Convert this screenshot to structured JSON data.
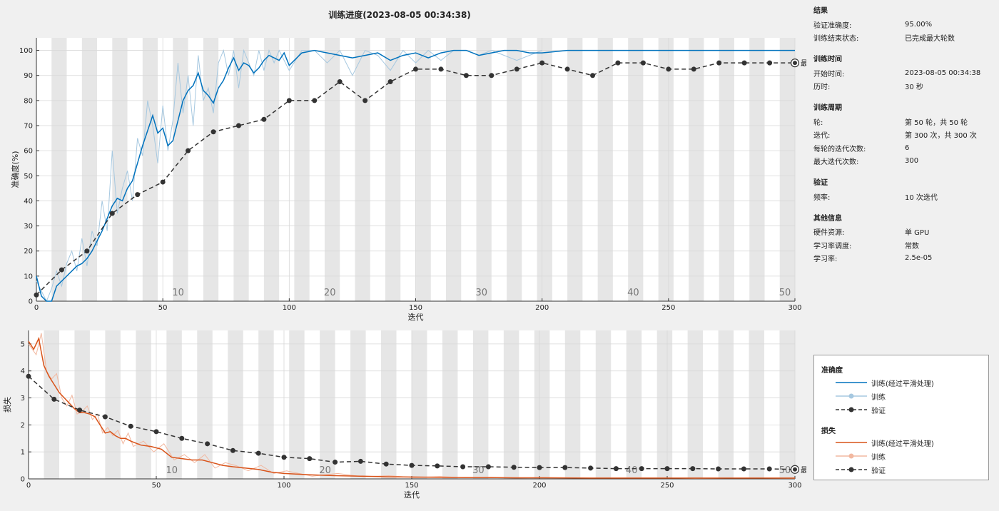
{
  "window": {
    "title": "训练进度(2023-08-05 00:34:38)"
  },
  "colors": {
    "accuracy_smoothed": "#0072bd",
    "accuracy_raw": "#a6c8e0",
    "loss_smoothed": "#d95319",
    "loss_raw": "#f2b8a0",
    "validation": "#333333",
    "epoch_band": "#e6e6e6"
  },
  "icons": {
    "edit": "pen-icon",
    "final_marker": "circled-dot-icon"
  },
  "info": {
    "sections": [
      {
        "title": "结果",
        "rows": [
          {
            "k": "验证准确度:",
            "v": "95.00%"
          },
          {
            "k": "训练结束状态:",
            "v": "已完成最大轮数"
          }
        ]
      },
      {
        "title": "训练时间",
        "rows": [
          {
            "k": "开始时间:",
            "v": "2023-08-05 00:34:38"
          },
          {
            "k": "历时:",
            "v": "30 秒"
          }
        ]
      },
      {
        "title": "训练周期",
        "rows": [
          {
            "k": "轮:",
            "v": "第 50 轮，共 50 轮"
          },
          {
            "k": "迭代:",
            "v": "第 300 次，共 300 次"
          },
          {
            "k": "每轮的迭代次数:",
            "v": "6"
          },
          {
            "k": "最大迭代次数:",
            "v": "300"
          }
        ]
      },
      {
        "title": "验证",
        "rows": [
          {
            "k": "频率:",
            "v": "10 次迭代"
          }
        ]
      },
      {
        "title": "其他信息",
        "rows": [
          {
            "k": "硬件资源:",
            "v": "单 GPU"
          },
          {
            "k": "学习率调度:",
            "v": "常数"
          },
          {
            "k": "学习率:",
            "v": "2.5e-05"
          }
        ]
      }
    ]
  },
  "legend": {
    "accuracy_title": "准确度",
    "accuracy_items": [
      "训练(经过平滑处理)",
      "训练",
      "验证"
    ],
    "loss_title": "损失",
    "loss_items": [
      "训练(经过平滑处理)",
      "训练",
      "验证"
    ]
  },
  "chart_data": [
    {
      "type": "line",
      "title": "",
      "xlabel": "迭代",
      "ylabel": "准确度(%)",
      "xlim": [
        0,
        300
      ],
      "ylim": [
        0,
        105
      ],
      "x_ticks": [
        0,
        50,
        100,
        150,
        200,
        250,
        300
      ],
      "y_ticks": [
        0,
        10,
        20,
        30,
        40,
        50,
        60,
        70,
        80,
        90,
        100
      ],
      "epoch_labels": [
        10,
        20,
        30,
        40,
        50
      ],
      "iterations_per_epoch": 6,
      "final_label": "最终",
      "grid": true,
      "series": [
        {
          "name": "训练(经过平滑处理)",
          "x": [
            0,
            2,
            4,
            6,
            8,
            10,
            12,
            14,
            16,
            18,
            20,
            22,
            24,
            26,
            28,
            30,
            32,
            34,
            36,
            38,
            40,
            42,
            44,
            46,
            48,
            50,
            52,
            54,
            56,
            58,
            60,
            62,
            64,
            66,
            68,
            70,
            72,
            74,
            76,
            78,
            80,
            82,
            84,
            86,
            88,
            90,
            92,
            94,
            96,
            98,
            100,
            105,
            110,
            115,
            120,
            125,
            130,
            135,
            140,
            145,
            150,
            155,
            160,
            165,
            170,
            175,
            180,
            185,
            190,
            195,
            200,
            210,
            220,
            230,
            240,
            250,
            260,
            270,
            280,
            290,
            300
          ],
          "values": [
            10,
            2,
            0,
            0,
            6,
            8,
            10,
            12,
            14,
            15,
            17,
            20,
            24,
            28,
            33,
            38,
            41,
            40,
            45,
            48,
            55,
            62,
            68,
            74,
            67,
            69,
            62,
            64,
            72,
            80,
            84,
            86,
            91,
            84,
            82,
            79,
            85,
            88,
            93,
            97,
            92,
            95,
            94,
            91,
            93,
            96,
            98,
            97,
            96,
            99,
            94,
            99,
            100,
            99,
            98,
            97,
            98,
            99,
            96,
            98,
            99,
            97,
            99,
            100,
            100,
            98,
            99,
            100,
            100,
            99,
            99,
            100,
            100,
            100,
            100,
            100,
            100,
            100,
            100,
            100,
            100
          ]
        },
        {
          "name": "训练",
          "x": [
            0,
            2,
            4,
            6,
            8,
            10,
            12,
            14,
            16,
            18,
            20,
            22,
            24,
            26,
            28,
            30,
            32,
            34,
            36,
            38,
            40,
            42,
            44,
            46,
            48,
            50,
            52,
            54,
            56,
            58,
            60,
            62,
            64,
            66,
            68,
            70,
            72,
            74,
            76,
            78,
            80,
            82,
            84,
            86,
            88,
            90,
            92,
            94,
            96,
            98,
            100,
            105,
            110,
            115,
            120,
            125,
            130,
            135,
            140,
            145,
            150,
            155,
            160,
            165,
            170,
            175,
            180,
            190,
            200
          ],
          "values": [
            8,
            4,
            0,
            5,
            12,
            6,
            15,
            20,
            12,
            25,
            14,
            28,
            22,
            40,
            28,
            60,
            35,
            45,
            52,
            40,
            65,
            58,
            80,
            70,
            55,
            78,
            60,
            72,
            95,
            75,
            90,
            70,
            98,
            80,
            85,
            75,
            95,
            100,
            90,
            100,
            85,
            100,
            95,
            90,
            100,
            92,
            100,
            95,
            100,
            96,
            92,
            100,
            100,
            95,
            100,
            90,
            100,
            98,
            92,
            100,
            95,
            100,
            96,
            100,
            100,
            98,
            100,
            96,
            100
          ]
        },
        {
          "name": "验证",
          "x": [
            0,
            10,
            20,
            30,
            40,
            50,
            60,
            70,
            80,
            90,
            100,
            110,
            120,
            130,
            140,
            150,
            160,
            170,
            180,
            190,
            200,
            210,
            220,
            230,
            240,
            250,
            260,
            270,
            280,
            290,
            300
          ],
          "values": [
            2.5,
            12.5,
            20,
            35,
            42.5,
            47.5,
            60,
            67.5,
            70,
            72.5,
            80,
            80,
            87.5,
            80,
            87.5,
            92.5,
            92.5,
            90,
            90,
            92.5,
            95,
            92.5,
            90,
            95,
            95,
            92.5,
            92.5,
            95,
            95,
            95,
            95
          ]
        }
      ]
    },
    {
      "type": "line",
      "title": "",
      "xlabel": "迭代",
      "ylabel": "损失",
      "xlim": [
        0,
        300
      ],
      "ylim": [
        0,
        5.5
      ],
      "x_ticks": [
        0,
        50,
        100,
        150,
        200,
        250,
        300
      ],
      "y_ticks": [
        0,
        1,
        2,
        3,
        4,
        5
      ],
      "epoch_labels": [
        10,
        20,
        30,
        40,
        50
      ],
      "iterations_per_epoch": 6,
      "final_label": "最终",
      "grid": true,
      "series": [
        {
          "name": "训练(经过平滑处理)",
          "x": [
            0,
            2,
            4,
            6,
            8,
            10,
            12,
            14,
            16,
            18,
            20,
            22,
            24,
            26,
            28,
            30,
            32,
            34,
            36,
            38,
            40,
            44,
            48,
            52,
            56,
            60,
            64,
            68,
            72,
            76,
            80,
            85,
            90,
            95,
            100,
            110,
            120,
            130,
            140,
            150,
            160,
            170,
            180,
            190,
            200,
            220,
            240,
            260,
            280,
            300
          ],
          "values": [
            5.1,
            4.8,
            5.2,
            4.2,
            3.8,
            3.5,
            3.2,
            3.0,
            2.8,
            2.6,
            2.45,
            2.45,
            2.4,
            2.3,
            2.0,
            1.7,
            1.75,
            1.6,
            1.5,
            1.5,
            1.4,
            1.25,
            1.2,
            1.1,
            0.8,
            0.75,
            0.7,
            0.7,
            0.6,
            0.5,
            0.45,
            0.4,
            0.35,
            0.25,
            0.2,
            0.15,
            0.12,
            0.1,
            0.08,
            0.07,
            0.06,
            0.05,
            0.05,
            0.04,
            0.04,
            0.03,
            0.03,
            0.03,
            0.03,
            0.03
          ]
        },
        {
          "name": "训练",
          "x": [
            0,
            3,
            5,
            7,
            9,
            11,
            13,
            15,
            17,
            19,
            21,
            23,
            25,
            27,
            29,
            31,
            33,
            35,
            37,
            39,
            41,
            45,
            49,
            53,
            57,
            61,
            65,
            69,
            73,
            77,
            81,
            86,
            91,
            96,
            101,
            111,
            121,
            131,
            141,
            151,
            161,
            171,
            181,
            191,
            201,
            221,
            241,
            261,
            281,
            300
          ],
          "values": [
            5.0,
            4.6,
            5.4,
            4.0,
            3.7,
            3.9,
            3.0,
            2.7,
            3.1,
            2.4,
            2.5,
            2.7,
            2.2,
            2.4,
            1.7,
            1.9,
            1.6,
            1.8,
            1.3,
            1.7,
            1.2,
            1.4,
            1.0,
            1.3,
            0.7,
            0.9,
            0.6,
            0.9,
            0.4,
            0.6,
            0.5,
            0.3,
            0.5,
            0.2,
            0.3,
            0.1,
            0.2,
            0.08,
            0.12,
            0.05,
            0.09,
            0.04,
            0.06,
            0.03,
            0.05,
            0.03,
            0.04,
            0.02,
            0.03,
            0.02
          ]
        },
        {
          "name": "验证",
          "x": [
            0,
            10,
            20,
            30,
            40,
            50,
            60,
            70,
            80,
            90,
            100,
            110,
            120,
            130,
            140,
            150,
            160,
            170,
            180,
            190,
            200,
            210,
            220,
            230,
            240,
            250,
            260,
            270,
            280,
            290,
            300
          ],
          "values": [
            3.8,
            2.95,
            2.55,
            2.3,
            1.95,
            1.75,
            1.5,
            1.3,
            1.05,
            0.95,
            0.8,
            0.75,
            0.62,
            0.65,
            0.55,
            0.5,
            0.48,
            0.45,
            0.45,
            0.43,
            0.42,
            0.42,
            0.4,
            0.38,
            0.38,
            0.38,
            0.38,
            0.37,
            0.37,
            0.37,
            0.35
          ]
        }
      ]
    }
  ]
}
